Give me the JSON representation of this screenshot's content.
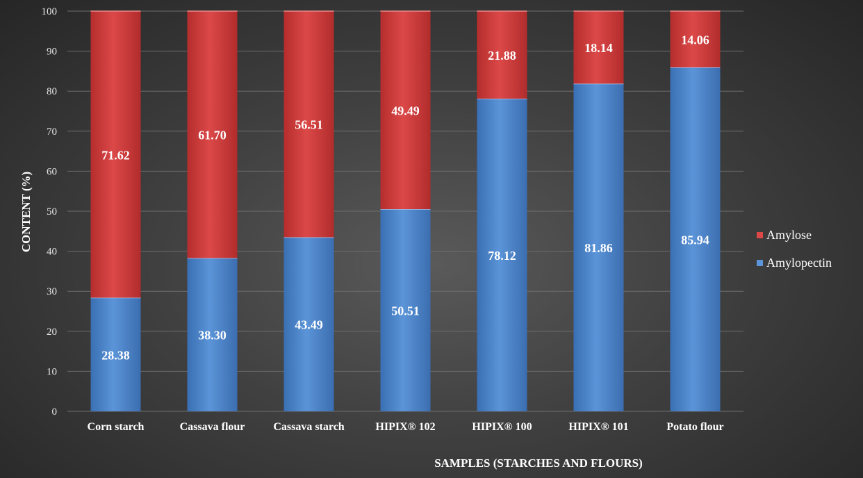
{
  "chart_data": {
    "type": "bar",
    "stacked": true,
    "title": "",
    "xlabel": "SAMPLES (STARCHES AND FLOURS)",
    "ylabel": "CONTENT (%)",
    "ylim": [
      0,
      100
    ],
    "yticks": [
      0,
      10,
      20,
      30,
      40,
      50,
      60,
      70,
      80,
      90,
      100
    ],
    "categories": [
      "Corn starch",
      "Cassava flour",
      "Cassava starch",
      "HIPIX® 102",
      "HIPIX® 100",
      "HIPIX® 101",
      "Potato flour"
    ],
    "series": [
      {
        "name": "Amylopectin",
        "values": [
          28.38,
          38.3,
          43.49,
          50.51,
          78.12,
          81.86,
          85.94
        ],
        "labels": [
          "28.38",
          "38.30",
          "43.49",
          "50.51",
          "78.12",
          "81.86",
          "85.94"
        ],
        "color": "#4f86cc"
      },
      {
        "name": "Amylose",
        "values": [
          71.62,
          61.7,
          56.51,
          49.49,
          21.88,
          18.14,
          14.06
        ],
        "labels": [
          "71.62",
          "61.70",
          "56.51",
          "49.49",
          "21.88",
          "18.14",
          "14.06"
        ],
        "color": "#cf3b3b"
      }
    ],
    "grid": true,
    "legend_position": "right"
  }
}
